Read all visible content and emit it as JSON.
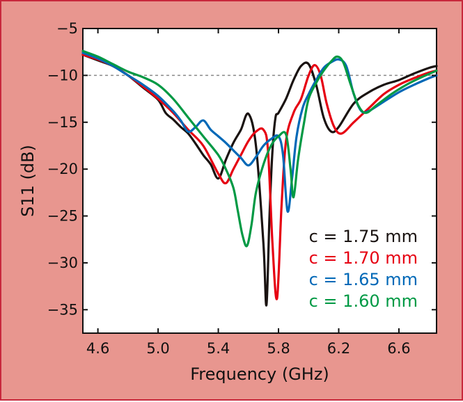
{
  "chart_data": {
    "type": "line",
    "title": "",
    "xlabel": "Frequency (GHz)",
    "ylabel": "S11 (dB)",
    "xlim": [
      4.5,
      6.85
    ],
    "ylim": [
      -37.5,
      -5
    ],
    "x_ticks": [
      4.6,
      5.0,
      5.4,
      5.8,
      6.2,
      6.6
    ],
    "x_tick_labels": [
      "4.6",
      "5.0",
      "5.4",
      "5.8",
      "6.2",
      "6.6"
    ],
    "y_ticks": [
      -5,
      -10,
      -15,
      -20,
      -25,
      -30,
      -35
    ],
    "y_tick_labels": [
      "−5",
      "−10",
      "−15",
      "−20",
      "−25",
      "−30",
      "−35"
    ],
    "reference_line": {
      "y": -10,
      "style": "dashed",
      "color": "#888888"
    },
    "grid": false,
    "legend_position": "bottom-right",
    "series": [
      {
        "name": "c = 1.75 mm",
        "color": "#1a1311",
        "x": [
          4.5,
          4.6,
          4.7,
          4.8,
          4.9,
          5.0,
          5.05,
          5.1,
          5.15,
          5.2,
          5.25,
          5.3,
          5.35,
          5.4,
          5.45,
          5.5,
          5.55,
          5.6,
          5.65,
          5.7,
          5.72,
          5.74,
          5.76,
          5.78,
          5.8,
          5.85,
          5.9,
          5.95,
          6.0,
          6.05,
          6.1,
          6.15,
          6.2,
          6.3,
          6.4,
          6.5,
          6.6,
          6.7,
          6.8,
          6.85
        ],
        "y": [
          -7.8,
          -8.4,
          -9.0,
          -10.0,
          -11.3,
          -12.6,
          -14.0,
          -14.7,
          -15.5,
          -16.2,
          -17.3,
          -18.5,
          -19.5,
          -21.0,
          -19.0,
          -17.2,
          -15.8,
          -14.1,
          -17.5,
          -28.0,
          -34.5,
          -25.0,
          -18.0,
          -14.5,
          -14.0,
          -12.5,
          -10.5,
          -9.0,
          -8.8,
          -11.0,
          -14.5,
          -16.0,
          -15.5,
          -13.0,
          -11.8,
          -11.0,
          -10.5,
          -9.8,
          -9.2,
          -9.0
        ]
      },
      {
        "name": "c = 1.70 mm",
        "color": "#e60012",
        "x": [
          4.5,
          4.6,
          4.7,
          4.8,
          4.9,
          5.0,
          5.1,
          5.2,
          5.3,
          5.4,
          5.45,
          5.5,
          5.55,
          5.6,
          5.65,
          5.7,
          5.73,
          5.76,
          5.79,
          5.82,
          5.85,
          5.9,
          5.95,
          6.0,
          6.04,
          6.08,
          6.12,
          6.17,
          6.22,
          6.3,
          6.4,
          6.5,
          6.6,
          6.7,
          6.8,
          6.85
        ],
        "y": [
          -7.8,
          -8.3,
          -9.0,
          -10.0,
          -11.2,
          -12.5,
          -14.0,
          -15.8,
          -17.5,
          -20.5,
          -21.5,
          -20.0,
          -18.5,
          -17.0,
          -16.0,
          -15.8,
          -18.0,
          -28.0,
          -33.8,
          -24.0,
          -17.0,
          -14.0,
          -12.5,
          -10.0,
          -8.9,
          -10.0,
          -13.0,
          -15.5,
          -16.2,
          -15.0,
          -13.5,
          -12.0,
          -11.0,
          -10.3,
          -9.7,
          -9.5
        ]
      },
      {
        "name": "c = 1.65 mm",
        "color": "#0068b7",
        "x": [
          4.5,
          4.6,
          4.7,
          4.8,
          4.9,
          5.0,
          5.1,
          5.15,
          5.2,
          5.25,
          5.3,
          5.35,
          5.4,
          5.45,
          5.5,
          5.55,
          5.6,
          5.65,
          5.7,
          5.75,
          5.8,
          5.83,
          5.86,
          5.89,
          5.92,
          5.96,
          6.0,
          6.05,
          6.1,
          6.15,
          6.2,
          6.25,
          6.3,
          6.35,
          6.4,
          6.5,
          6.6,
          6.7,
          6.8,
          6.85
        ],
        "y": [
          -7.6,
          -8.2,
          -9.0,
          -10.0,
          -11.0,
          -12.2,
          -13.8,
          -14.8,
          -16.0,
          -15.5,
          -14.8,
          -15.8,
          -16.5,
          -17.2,
          -18.0,
          -18.8,
          -19.6,
          -18.7,
          -17.5,
          -16.8,
          -16.5,
          -18.5,
          -24.5,
          -21.0,
          -16.5,
          -13.5,
          -12.0,
          -10.5,
          -9.2,
          -8.6,
          -8.3,
          -9.0,
          -12.0,
          -13.8,
          -13.8,
          -12.8,
          -11.8,
          -11.0,
          -10.3,
          -10.0
        ]
      },
      {
        "name": "c = 1.60 mm",
        "color": "#009944",
        "x": [
          4.5,
          4.6,
          4.7,
          4.8,
          4.9,
          5.0,
          5.1,
          5.2,
          5.3,
          5.4,
          5.45,
          5.5,
          5.53,
          5.56,
          5.59,
          5.62,
          5.65,
          5.7,
          5.75,
          5.8,
          5.85,
          5.88,
          5.9,
          5.93,
          5.97,
          6.0,
          6.05,
          6.1,
          6.15,
          6.19,
          6.23,
          6.28,
          6.33,
          6.38,
          6.45,
          6.55,
          6.65,
          6.75,
          6.85
        ],
        "y": [
          -7.4,
          -8.0,
          -8.8,
          -9.6,
          -10.2,
          -11.0,
          -12.5,
          -14.5,
          -16.5,
          -18.5,
          -20.0,
          -22.0,
          -24.5,
          -27.0,
          -28.2,
          -26.0,
          -22.5,
          -19.5,
          -17.5,
          -16.5,
          -16.3,
          -20.0,
          -23.0,
          -19.0,
          -15.0,
          -12.5,
          -10.8,
          -9.5,
          -8.5,
          -8.0,
          -8.6,
          -11.0,
          -13.2,
          -14.0,
          -13.2,
          -12.0,
          -11.0,
          -10.2,
          -9.5
        ]
      }
    ]
  }
}
